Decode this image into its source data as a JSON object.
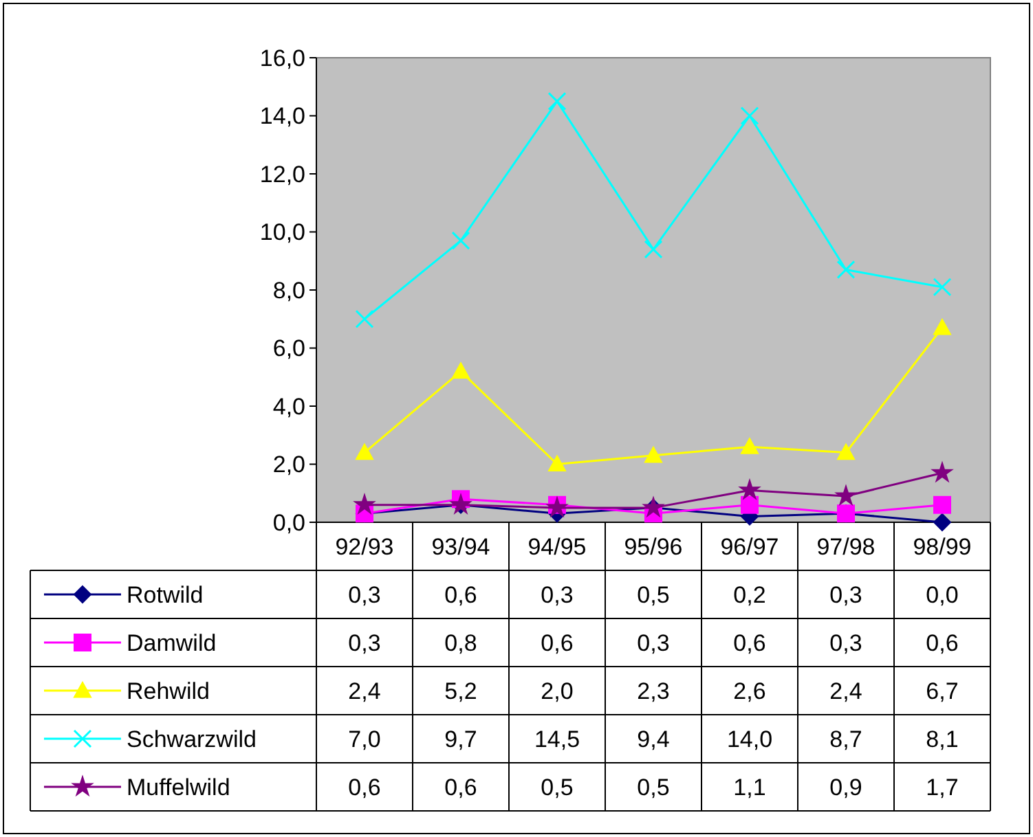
{
  "chart_data": {
    "type": "line",
    "categories": [
      "92/93",
      "93/94",
      "94/95",
      "95/96",
      "96/97",
      "97/98",
      "98/99"
    ],
    "ylim": [
      0,
      16
    ],
    "yticks": [
      {
        "value": 0,
        "label": "0,0"
      },
      {
        "value": 2,
        "label": "2,0"
      },
      {
        "value": 4,
        "label": "4,0"
      },
      {
        "value": 6,
        "label": "6,0"
      },
      {
        "value": 8,
        "label": "8,0"
      },
      {
        "value": 10,
        "label": "10,0"
      },
      {
        "value": 12,
        "label": "12,0"
      },
      {
        "value": 14,
        "label": "14,0"
      },
      {
        "value": 16,
        "label": "16,0"
      }
    ],
    "grid": false,
    "legend": "bottom",
    "line_style": "solid",
    "series": [
      {
        "name": "Rotwild",
        "color": "#000080",
        "marker": "diamond",
        "values": [
          0.3,
          0.6,
          0.3,
          0.5,
          0.2,
          0.3,
          0.0
        ],
        "value_labels": [
          "0,3",
          "0,6",
          "0,3",
          "0,5",
          "0,2",
          "0,3",
          "0,0"
        ]
      },
      {
        "name": "Damwild",
        "color": "#ff00ff",
        "marker": "square",
        "values": [
          0.3,
          0.8,
          0.6,
          0.3,
          0.6,
          0.3,
          0.6
        ],
        "value_labels": [
          "0,3",
          "0,8",
          "0,6",
          "0,3",
          "0,6",
          "0,3",
          "0,6"
        ]
      },
      {
        "name": "Rehwild",
        "color": "#ffff00",
        "marker": "triangle",
        "values": [
          2.4,
          5.2,
          2.0,
          2.3,
          2.6,
          2.4,
          6.7
        ],
        "value_labels": [
          "2,4",
          "5,2",
          "2,0",
          "2,3",
          "2,6",
          "2,4",
          "6,7"
        ]
      },
      {
        "name": "Schwarzwild",
        "color": "#00ffff",
        "marker": "cross",
        "values": [
          7.0,
          9.7,
          14.5,
          9.4,
          14.0,
          8.7,
          8.1
        ],
        "value_labels": [
          "7,0",
          "9,7",
          "14,5",
          "9,4",
          "14,0",
          "8,7",
          "8,1"
        ]
      },
      {
        "name": "Muffelwild",
        "color": "#800080",
        "marker": "star",
        "values": [
          0.6,
          0.6,
          0.5,
          0.5,
          1.1,
          0.9,
          1.7
        ],
        "value_labels": [
          "0,6",
          "0,6",
          "0,5",
          "0,5",
          "1,1",
          "0,9",
          "1,7"
        ]
      }
    ]
  }
}
